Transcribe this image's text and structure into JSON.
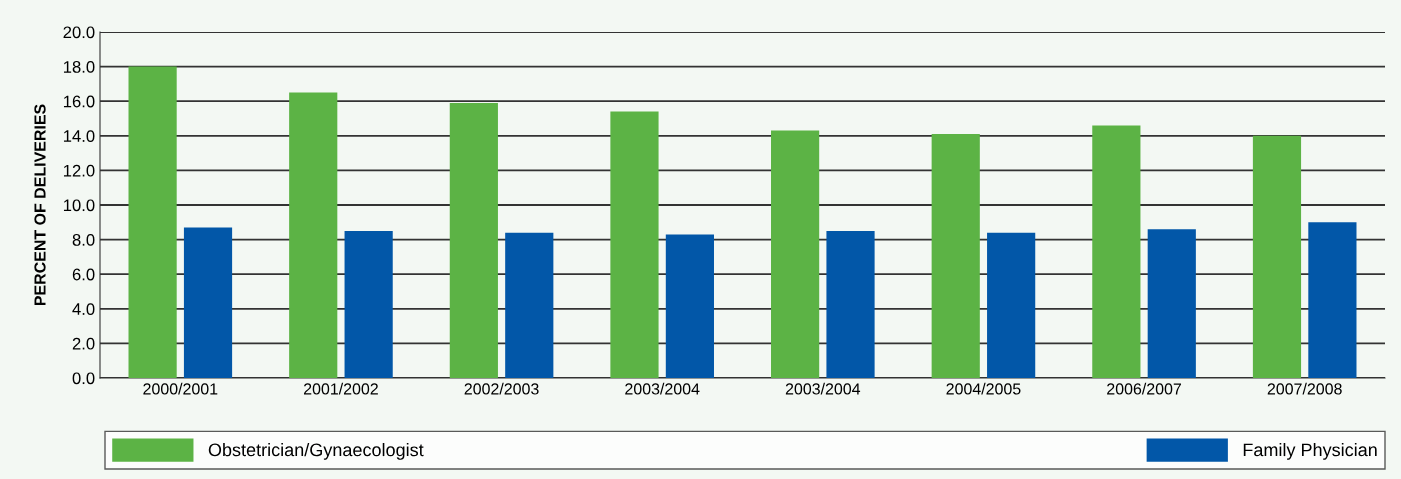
{
  "chart_data": {
    "type": "bar",
    "ylabel": "PERCENT OF DELIVERIES",
    "categories": [
      "2000/2001",
      "2001/2002",
      "2002/2003",
      "2003/2004",
      "2003/2004",
      "2004/2005",
      "2006/2007",
      "2007/2008"
    ],
    "series": [
      {
        "name": "Obstetrician/Gynaecologist",
        "color": "#5cb345",
        "values": [
          18.0,
          16.5,
          15.9,
          15.4,
          14.3,
          14.1,
          14.6,
          14.0
        ]
      },
      {
        "name": "Family Physician",
        "color": "#0257a8",
        "values": [
          8.7,
          8.5,
          8.4,
          8.3,
          8.5,
          8.4,
          8.6,
          9.0
        ]
      }
    ],
    "ylim": [
      0,
      20
    ],
    "yticks": [
      {
        "value": 0,
        "label": "0.0"
      },
      {
        "value": 2,
        "label": "2.0"
      },
      {
        "value": 4,
        "label": "4.0"
      },
      {
        "value": 6,
        "label": "6.0"
      },
      {
        "value": 8,
        "label": "8.0"
      },
      {
        "value": 10,
        "label": "10.0"
      },
      {
        "value": 12,
        "label": "12.0"
      },
      {
        "value": 14,
        "label": "14.0"
      },
      {
        "value": 16,
        "label": "16.0"
      },
      {
        "value": 18,
        "label": "18.0"
      },
      {
        "value": 20,
        "label": "20.0"
      }
    ],
    "grid": "y",
    "legend": "bottom"
  }
}
